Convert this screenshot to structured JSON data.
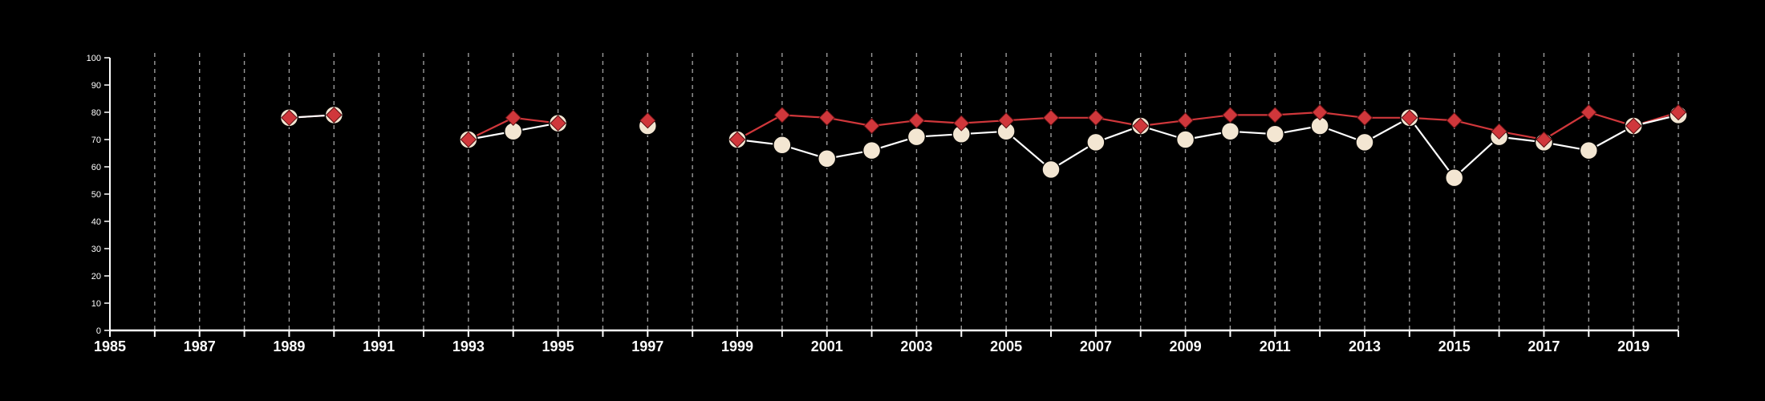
{
  "chart_data": {
    "type": "line",
    "title": "",
    "xlabel": "",
    "ylabel": "",
    "xlim": [
      1985,
      2020
    ],
    "ylim": [
      0,
      100
    ],
    "grid": "vertical dashed lines at each year",
    "legend": "none",
    "x_tick_labels": [
      "1985",
      "1987",
      "1989",
      "1991",
      "1993",
      "1995",
      "1997",
      "1999",
      "2001",
      "2003",
      "2005",
      "2007",
      "2009",
      "2011",
      "2013",
      "2015",
      "2017",
      "2019"
    ],
    "y_tick_labels": [
      "0",
      "10",
      "20",
      "30",
      "40",
      "50",
      "60",
      "70",
      "80",
      "90",
      "100"
    ],
    "colors": {
      "background": "#000000",
      "axis": "#ffffff",
      "grid": "#9a9a9a"
    },
    "series": [
      {
        "color": "#f3e6d2",
        "line_color": "#ffffff",
        "marker": "circle",
        "points": [
          [
            1989,
            78
          ],
          [
            1990,
            79
          ],
          [
            1993,
            70
          ],
          [
            1994,
            73
          ],
          [
            1995,
            76
          ],
          [
            1997,
            75
          ],
          [
            1999,
            70
          ],
          [
            2000,
            68
          ],
          [
            2001,
            63
          ],
          [
            2002,
            66
          ],
          [
            2003,
            71
          ],
          [
            2004,
            72
          ],
          [
            2005,
            73
          ],
          [
            2006,
            59
          ],
          [
            2007,
            69
          ],
          [
            2008,
            75
          ],
          [
            2009,
            70
          ],
          [
            2010,
            73
          ],
          [
            2011,
            72
          ],
          [
            2012,
            75
          ],
          [
            2013,
            69
          ],
          [
            2014,
            78
          ],
          [
            2015,
            56
          ],
          [
            2016,
            71
          ],
          [
            2017,
            69
          ],
          [
            2018,
            66
          ],
          [
            2019,
            75
          ],
          [
            2020,
            79
          ]
        ]
      },
      {
        "color": "#d0373b",
        "line_color": "#d0373b",
        "marker": "diamond",
        "points": [
          [
            1989,
            78
          ],
          [
            1990,
            79
          ],
          [
            1993,
            70
          ],
          [
            1994,
            78
          ],
          [
            1995,
            76
          ],
          [
            1997,
            77
          ],
          [
            1999,
            70
          ],
          [
            2000,
            79
          ],
          [
            2001,
            78
          ],
          [
            2002,
            75
          ],
          [
            2003,
            77
          ],
          [
            2004,
            76
          ],
          [
            2005,
            77
          ],
          [
            2006,
            78
          ],
          [
            2007,
            78
          ],
          [
            2008,
            75
          ],
          [
            2009,
            77
          ],
          [
            2010,
            79
          ],
          [
            2011,
            79
          ],
          [
            2012,
            80
          ],
          [
            2013,
            78
          ],
          [
            2014,
            78
          ],
          [
            2015,
            77
          ],
          [
            2016,
            73
          ],
          [
            2017,
            70
          ],
          [
            2018,
            80
          ],
          [
            2019,
            75
          ],
          [
            2020,
            80
          ]
        ]
      }
    ]
  }
}
